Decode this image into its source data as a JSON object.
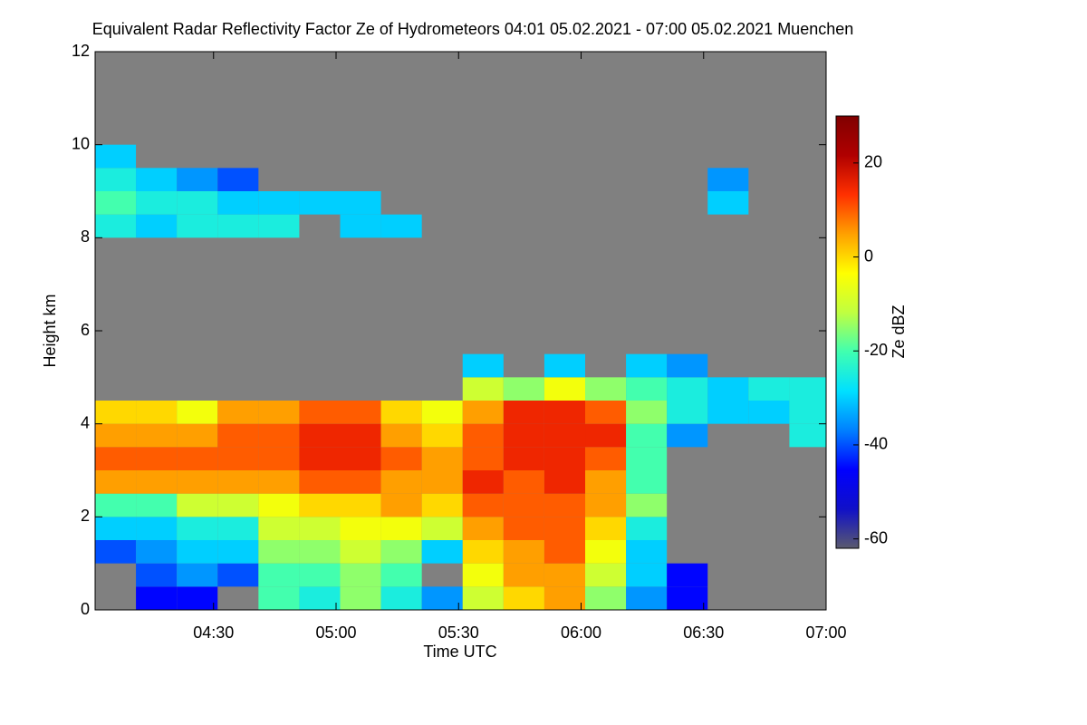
{
  "chart_data": {
    "type": "heatmap",
    "title": "Equivalent Radar Reflectivity Factor Ze of Hydrometeors   04:01 05.02.2021 - 07:00 05.02.2021 Muenchen",
    "x_label": "Time UTC",
    "y_label": "Height km",
    "colorbar_label": "Ze dBZ",
    "xlim": [
      241,
      420
    ],
    "xticks": [
      {
        "value": 270,
        "label": "04:30"
      },
      {
        "value": 300,
        "label": "05:00"
      },
      {
        "value": 330,
        "label": "05:30"
      },
      {
        "value": 360,
        "label": "06:00"
      },
      {
        "value": 390,
        "label": "06:30"
      },
      {
        "value": 420,
        "label": "07:00"
      }
    ],
    "ylim": [
      0,
      12
    ],
    "yticks": [
      0,
      2,
      4,
      6,
      8,
      10,
      12
    ],
    "zlim": [
      -62,
      30
    ],
    "zticks": [
      -60,
      -40,
      -20,
      0,
      20
    ],
    "background": "#808080",
    "colorscale": [
      "#5a5a6e",
      "#1010c8",
      "#0000ff",
      "#0080ff",
      "#00e0ff",
      "#40ffb0",
      "#c0ff40",
      "#ffff00",
      "#ffa000",
      "#ff3000",
      "#b00000",
      "#800000"
    ],
    "x": [
      246,
      256,
      266,
      276,
      286,
      296,
      306,
      316,
      326,
      336,
      346,
      356,
      366,
      376,
      386,
      396,
      406,
      416
    ],
    "y": [
      0.25,
      0.75,
      1.25,
      1.75,
      2.25,
      2.75,
      3.25,
      3.75,
      4.25,
      4.75,
      5.25,
      5.75,
      6.25,
      6.75,
      7.25,
      7.75,
      8.25,
      8.75,
      9.25,
      9.75
    ],
    "z": [
      [
        null,
        -45,
        -45,
        null,
        -20,
        -25,
        -15,
        -25,
        -35,
        -10,
        0,
        5,
        -15,
        -35,
        -45,
        null,
        null,
        null
      ],
      [
        null,
        -40,
        -35,
        -40,
        -20,
        -20,
        -15,
        -20,
        null,
        -5,
        5,
        5,
        -10,
        -30,
        -45,
        null,
        null,
        null
      ],
      [
        -40,
        -35,
        -30,
        -30,
        -15,
        -15,
        -10,
        -15,
        -30,
        0,
        5,
        10,
        -5,
        -30,
        null,
        null,
        null,
        null
      ],
      [
        -30,
        -30,
        -25,
        -25,
        -10,
        -10,
        -5,
        -5,
        -10,
        5,
        10,
        10,
        0,
        -25,
        null,
        null,
        null,
        null
      ],
      [
        -20,
        -20,
        -10,
        -10,
        -5,
        0,
        0,
        5,
        0,
        10,
        10,
        10,
        5,
        -15,
        null,
        null,
        null,
        null
      ],
      [
        5,
        5,
        5,
        5,
        5,
        10,
        10,
        5,
        5,
        15,
        10,
        15,
        5,
        -20,
        null,
        null,
        null,
        null
      ],
      [
        10,
        10,
        10,
        10,
        10,
        15,
        15,
        10,
        5,
        10,
        15,
        15,
        10,
        -20,
        null,
        null,
        null,
        null
      ],
      [
        5,
        5,
        5,
        10,
        10,
        15,
        15,
        5,
        0,
        10,
        15,
        15,
        15,
        -20,
        -35,
        null,
        null,
        -25
      ],
      [
        0,
        0,
        -5,
        5,
        5,
        10,
        10,
        0,
        -5,
        5,
        15,
        15,
        10,
        -15,
        -25,
        -30,
        -30,
        -25
      ],
      [
        null,
        null,
        null,
        null,
        null,
        null,
        null,
        null,
        null,
        -10,
        -15,
        -5,
        -15,
        -20,
        -25,
        -30,
        -25,
        -25
      ],
      [
        null,
        null,
        null,
        null,
        null,
        null,
        null,
        null,
        null,
        -30,
        null,
        -30,
        null,
        -30,
        -35,
        null,
        null,
        null
      ],
      [
        null,
        null,
        null,
        null,
        null,
        null,
        null,
        null,
        null,
        null,
        null,
        null,
        null,
        null,
        null,
        null,
        null,
        null
      ],
      [
        null,
        null,
        null,
        null,
        null,
        null,
        null,
        null,
        null,
        null,
        null,
        null,
        null,
        null,
        null,
        null,
        null,
        null
      ],
      [
        null,
        null,
        null,
        null,
        null,
        null,
        null,
        null,
        null,
        null,
        null,
        null,
        null,
        null,
        null,
        null,
        null,
        null
      ],
      [
        null,
        null,
        null,
        null,
        null,
        null,
        null,
        null,
        null,
        null,
        null,
        null,
        null,
        null,
        null,
        null,
        null,
        null
      ],
      [
        null,
        null,
        null,
        null,
        null,
        null,
        null,
        null,
        null,
        null,
        null,
        null,
        null,
        null,
        null,
        null,
        null,
        null
      ],
      [
        -25,
        -30,
        -25,
        -25,
        -25,
        null,
        -30,
        -30,
        null,
        null,
        null,
        null,
        null,
        null,
        null,
        null,
        null,
        null
      ],
      [
        -20,
        -25,
        -25,
        -30,
        -30,
        -30,
        -30,
        null,
        null,
        null,
        null,
        null,
        null,
        null,
        null,
        -30,
        null,
        null
      ],
      [
        -25,
        -30,
        -35,
        -40,
        null,
        null,
        null,
        null,
        null,
        null,
        null,
        null,
        null,
        null,
        null,
        -35,
        null,
        null
      ],
      [
        -30,
        null,
        null,
        null,
        null,
        null,
        null,
        null,
        null,
        null,
        null,
        null,
        null,
        null,
        null,
        null,
        null,
        null
      ]
    ]
  }
}
